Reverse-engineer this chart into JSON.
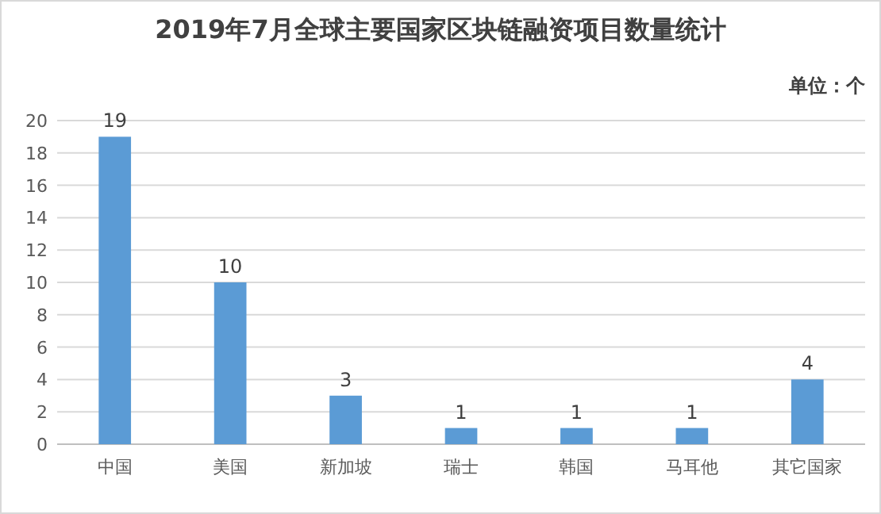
{
  "chart_data": {
    "type": "bar",
    "title": "2019年7月全球主要国家区块链融资项目数量统计",
    "annotations": [
      "单位：个"
    ],
    "categories": [
      "中国",
      "美国",
      "新加坡",
      "瑞士",
      "韩国",
      "马耳他",
      "其它国家"
    ],
    "values": [
      19,
      10,
      3,
      1,
      1,
      1,
      4
    ],
    "color": "#5b9bd5",
    "ylim": [
      0,
      20
    ],
    "yticks": [
      0,
      2,
      4,
      6,
      8,
      10,
      12,
      14,
      16,
      18,
      20
    ],
    "grid": "y",
    "data_labels": true
  }
}
